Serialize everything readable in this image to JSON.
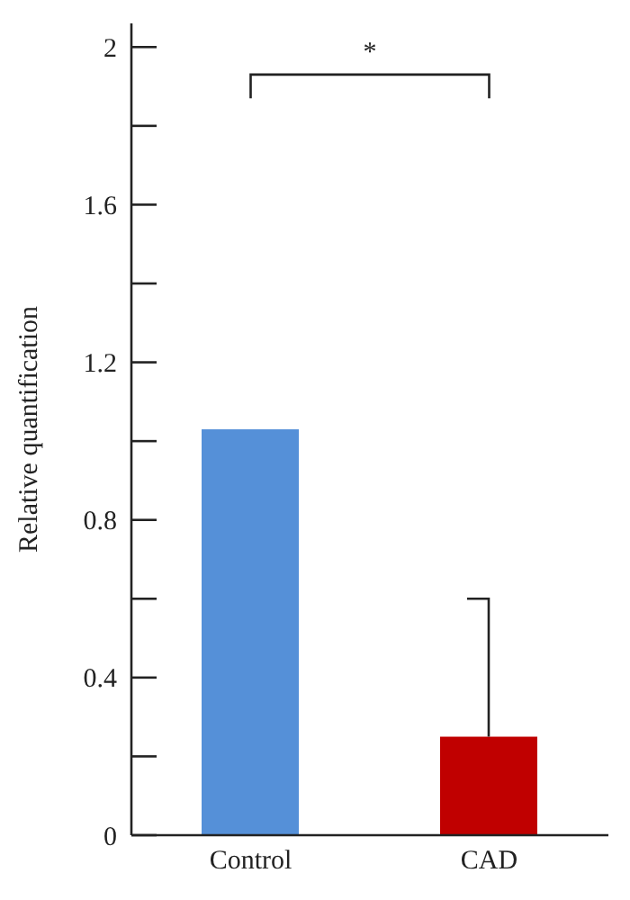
{
  "chart_data": {
    "type": "bar",
    "ylabel": "Relative quantification",
    "categories": [
      "Control",
      "CAD"
    ],
    "values": [
      1.03,
      0.25
    ],
    "colors": [
      "#5590d8",
      "#c00000"
    ],
    "errors": [
      null,
      [
        0.25,
        0.6
      ]
    ],
    "ylim": [
      0,
      2.06
    ],
    "yticks": [
      0,
      {
        "value": 0.2,
        "label": null
      },
      0.4,
      {
        "value": 0.6,
        "label": null
      },
      0.8,
      {
        "value": 1.0,
        "label": null
      },
      1.2,
      {
        "value": 1.4,
        "label": null
      },
      1.6,
      {
        "value": 1.8,
        "label": null
      },
      2
    ],
    "annotations": [
      "*"
    ],
    "grid": false,
    "legend": false
  }
}
